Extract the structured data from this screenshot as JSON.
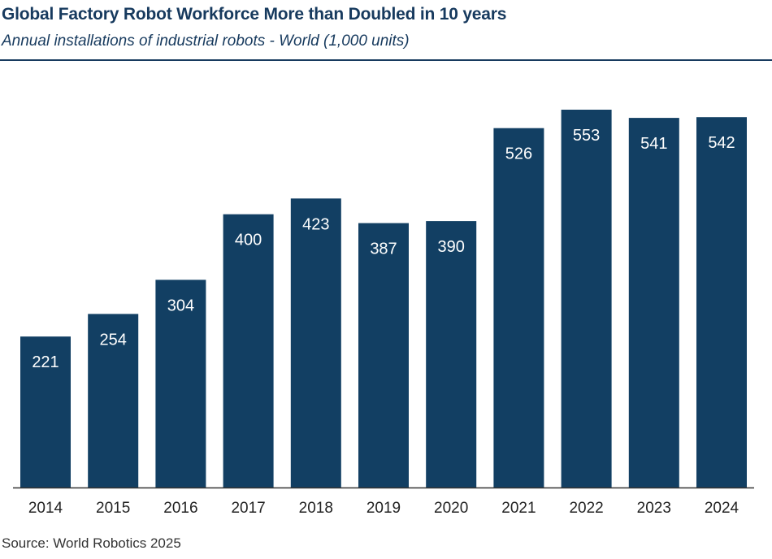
{
  "title": "Global Factory Robot Workforce More than Doubled in 10 years",
  "subtitle": "Annual installations of industrial robots - World (1,000 units)",
  "source": "Source: World Robotics 2025",
  "colors": {
    "bar": "#123f63",
    "bar_label": "#ffffff",
    "axis": "#333333",
    "tick_text": "#222222"
  },
  "chart_data": {
    "type": "bar",
    "categories": [
      "2014",
      "2015",
      "2016",
      "2017",
      "2018",
      "2019",
      "2020",
      "2021",
      "2022",
      "2023",
      "2024"
    ],
    "values": [
      221,
      254,
      304,
      400,
      423,
      387,
      390,
      526,
      553,
      541,
      542
    ],
    "data_labels": [
      "221",
      "254",
      "304",
      "400",
      "423",
      "387",
      "390",
      "526",
      "553",
      "541",
      "542"
    ],
    "title": "Global Factory Robot Workforce More than Doubled in 10 years",
    "subtitle": "Annual installations of industrial robots - World (1,000 units)",
    "xlabel": "",
    "ylabel": "",
    "ylim": [
      0,
      553
    ],
    "grid": false,
    "legend": "none"
  }
}
